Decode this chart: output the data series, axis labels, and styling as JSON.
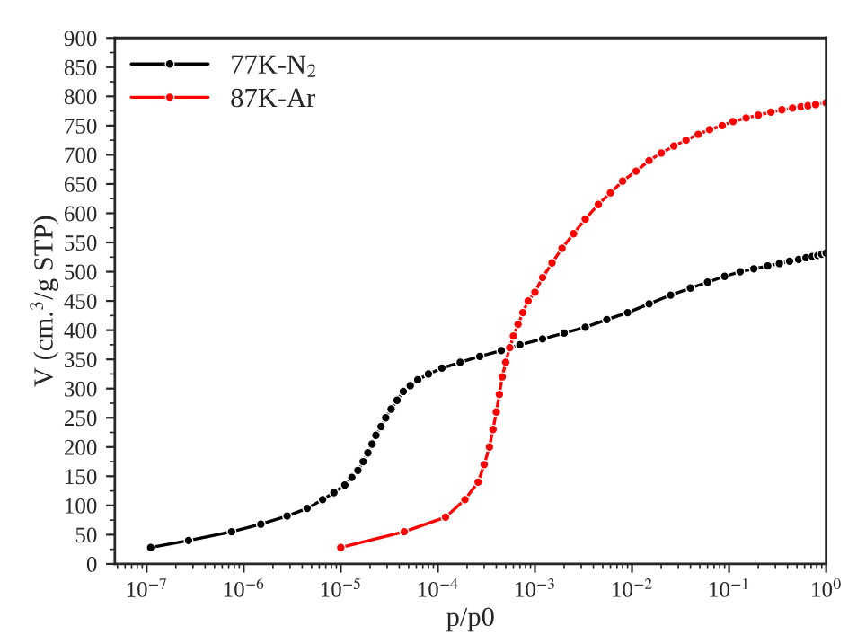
{
  "chart_data": {
    "type": "line",
    "xlabel": "p/p0",
    "ylabel": "V (cm.$^{3}$/g STP)",
    "log": "x",
    "marker": "circle",
    "line_style": "solid",
    "grid": false,
    "legend": "top left",
    "xlim": [
      4.7e-08,
      1
    ],
    "xticks": [
      {
        "value": 1e-07,
        "label": "10$^{−7}$"
      },
      {
        "value": 1e-06,
        "label": "10$^{−6}$"
      },
      {
        "value": 1e-05,
        "label": "10$^{−5}$"
      },
      {
        "value": 0.0001,
        "label": "10$^{−4}$"
      },
      {
        "value": 0.001,
        "label": "10$^{−3}$"
      },
      {
        "value": 0.01,
        "label": "10$^{−2}$"
      },
      {
        "value": 0.1,
        "label": "10$^{−1}$"
      },
      {
        "value": 1,
        "label": "10$^{0}$"
      }
    ],
    "ylim": [
      0,
      900
    ],
    "yticks": [
      0,
      50,
      100,
      150,
      200,
      250,
      300,
      350,
      400,
      450,
      500,
      550,
      600,
      650,
      700,
      750,
      800,
      850,
      900
    ],
    "series": [
      {
        "name": "77K-N$_{2}$",
        "color": "#000000",
        "x": [
          1.1e-07,
          2.7e-07,
          7.5e-07,
          1.5e-06,
          2.8e-06,
          4.5e-06,
          6.5e-06,
          8.5e-06,
          1.1e-05,
          1.3e-05,
          1.5e-05,
          1.7e-05,
          1.9e-05,
          2.1e-05,
          2.3e-05,
          2.6e-05,
          2.9e-05,
          3.3e-05,
          3.8e-05,
          4.4e-05,
          5.2e-05,
          6.2e-05,
          8e-05,
          0.00011,
          0.00017,
          0.00027,
          0.00045,
          0.0007,
          0.0012,
          0.002,
          0.0033,
          0.0055,
          0.009,
          0.015,
          0.025,
          0.04,
          0.06,
          0.09,
          0.13,
          0.18,
          0.25,
          0.33,
          0.42,
          0.52,
          0.62,
          0.72,
          0.82,
          0.9,
          1.0
        ],
        "values": [
          28,
          40,
          55,
          68,
          82,
          95,
          110,
          122,
          135,
          148,
          160,
          175,
          190,
          205,
          220,
          235,
          250,
          265,
          280,
          295,
          305,
          315,
          325,
          335,
          345,
          355,
          365,
          375,
          385,
          395,
          405,
          418,
          430,
          445,
          460,
          472,
          482,
          492,
          500,
          505,
          510,
          514,
          518,
          521,
          524,
          526,
          528,
          530,
          532
        ]
      },
      {
        "name": "87K-Ar",
        "color": "#ff0000",
        "x": [
          1e-05,
          4.5e-05,
          0.00012,
          0.00019,
          0.00026,
          0.0003,
          0.00034,
          0.00037,
          0.0004,
          0.00043,
          0.00046,
          0.0005,
          0.00055,
          0.0006,
          0.00067,
          0.00075,
          0.00085,
          0.001,
          0.0012,
          0.0015,
          0.0019,
          0.0025,
          0.0033,
          0.0045,
          0.006,
          0.008,
          0.011,
          0.015,
          0.02,
          0.027,
          0.036,
          0.048,
          0.063,
          0.085,
          0.11,
          0.15,
          0.2,
          0.27,
          0.35,
          0.45,
          0.55,
          0.65,
          0.78,
          1.0
        ],
        "values": [
          28,
          55,
          80,
          110,
          140,
          170,
          200,
          230,
          260,
          290,
          320,
          345,
          370,
          390,
          410,
          430,
          450,
          465,
          490,
          515,
          540,
          565,
          590,
          615,
          635,
          655,
          672,
          690,
          703,
          715,
          725,
          735,
          743,
          750,
          757,
          763,
          768,
          773,
          777,
          780,
          782,
          784,
          786,
          789
        ]
      }
    ]
  }
}
